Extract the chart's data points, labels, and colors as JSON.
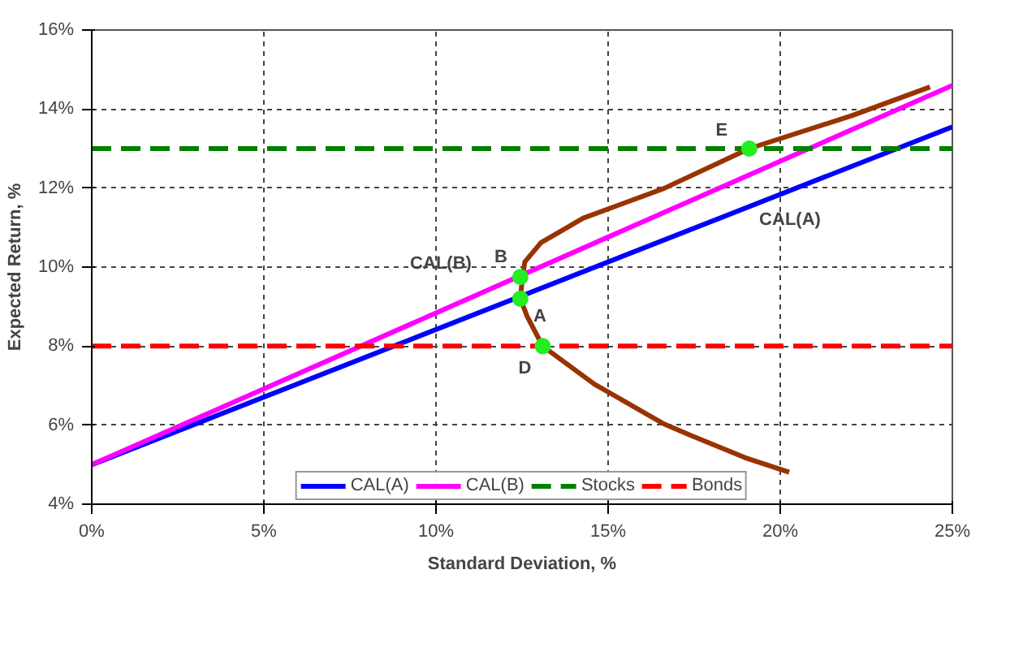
{
  "chart_data": {
    "type": "line",
    "xlabel": "Standard Deviation, %",
    "ylabel": "Expected Return, %",
    "xlim": [
      0,
      25
    ],
    "ylim": [
      4,
      16
    ],
    "xticks": [
      {
        "value": 0,
        "label": "0%"
      },
      {
        "value": 5,
        "label": "5%"
      },
      {
        "value": 10,
        "label": "10%"
      },
      {
        "value": 15,
        "label": "15%"
      },
      {
        "value": 20,
        "label": "20%"
      },
      {
        "value": 25,
        "label": "25%"
      }
    ],
    "yticks": [
      {
        "value": 4,
        "label": "4%"
      },
      {
        "value": 6,
        "label": "6%"
      },
      {
        "value": 8,
        "label": "8%"
      },
      {
        "value": 10,
        "label": "10%"
      },
      {
        "value": 12,
        "label": "12%"
      },
      {
        "value": 14,
        "label": "14%"
      },
      {
        "value": 16,
        "label": "16%"
      }
    ],
    "grid": true,
    "legend": "bottom",
    "series": [
      {
        "name": "CAL(A)",
        "color": "#0000ff",
        "x": [
          0,
          25
        ],
        "values": [
          5,
          13.55
        ],
        "line_style": "solid"
      },
      {
        "name": "CAL(B)",
        "color": "#ff00ff",
        "x": [
          0,
          25
        ],
        "values": [
          5,
          14.6
        ],
        "line_style": "solid"
      },
      {
        "name": "Stocks",
        "color": "#008000",
        "x": [
          0,
          25
        ],
        "values": [
          13,
          13
        ],
        "line_style": "dashed"
      },
      {
        "name": "Bonds",
        "color": "#ff0000",
        "x": [
          0,
          25
        ],
        "values": [
          8,
          8
        ],
        "line_style": "dashed"
      },
      {
        "color": "#993300",
        "x": [
          20.26,
          18.97,
          17.4,
          16.6,
          14.6,
          13.1,
          12.65,
          12.45,
          12.5,
          12.58,
          13.05,
          14.28,
          16.62,
          19.1,
          22.1,
          24.35
        ],
        "values": [
          4.81,
          5.18,
          5.74,
          6.04,
          7.04,
          8.0,
          8.75,
          9.2,
          9.64,
          10.13,
          10.62,
          11.24,
          11.99,
          13.0,
          13.84,
          14.56
        ],
        "line_style": "solid"
      },
      {
        "type": "scatter",
        "marker": "circle",
        "color": "#22ee22",
        "x": [
          12.45,
          12.45,
          13.1,
          19.1
        ],
        "values": [
          9.2,
          9.75,
          8.0,
          13.0
        ]
      }
    ],
    "annotations": [
      "CAL(A)",
      "CAL(B)",
      {
        "text": "B",
        "x": 12.45,
        "y": 9.75
      },
      {
        "text": "A",
        "x": 12.45,
        "y": 9.2
      },
      {
        "text": "D",
        "x": 13.1,
        "y": 8.0
      },
      {
        "text": "E",
        "x": 19.1,
        "y": 13.0
      }
    ]
  }
}
